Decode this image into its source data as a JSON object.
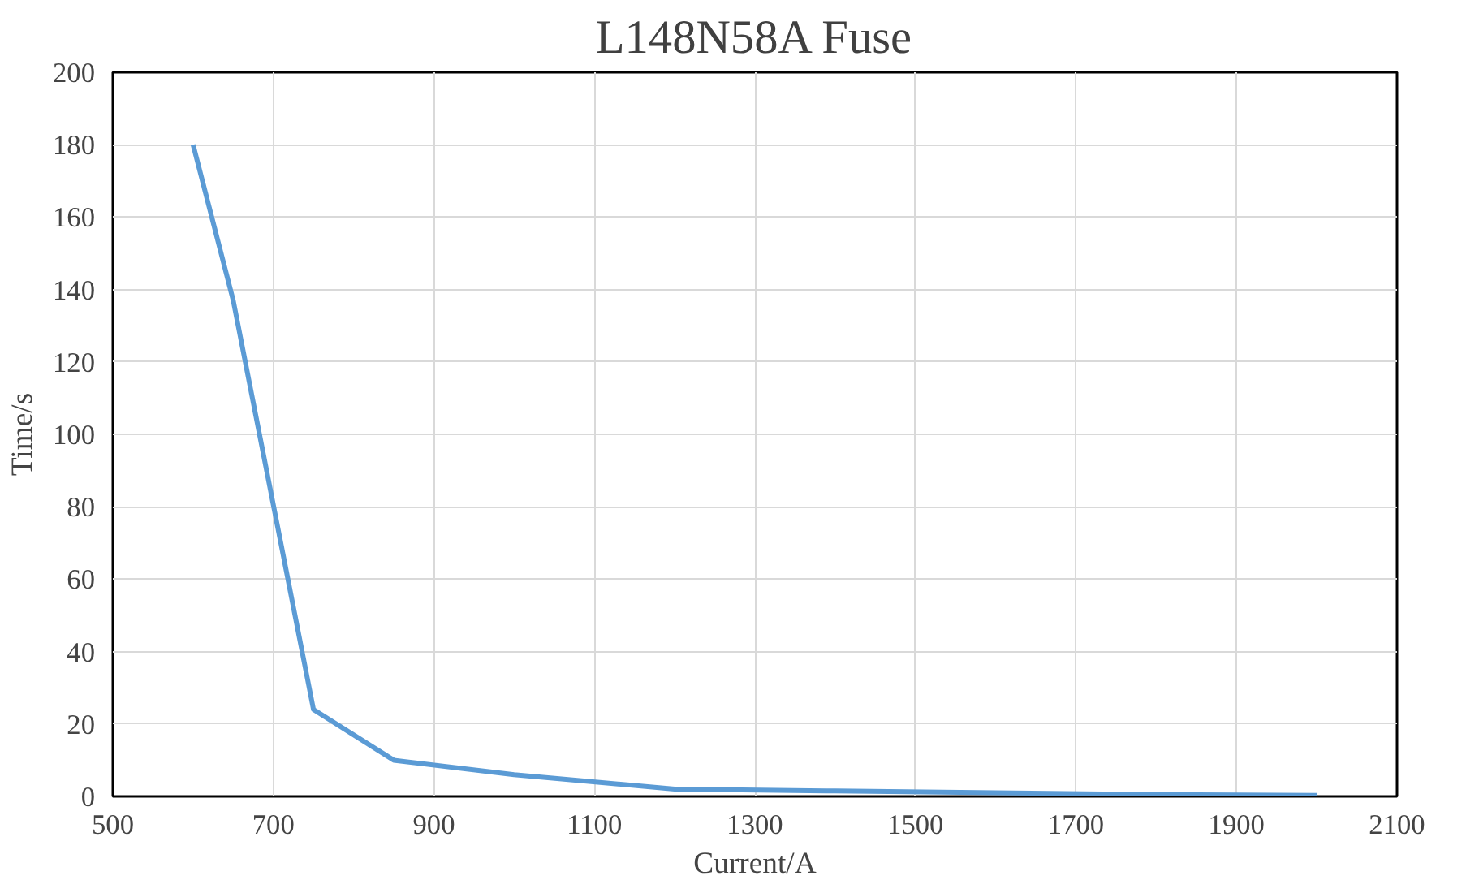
{
  "chart_data": {
    "type": "line",
    "title": "L148N58A Fuse",
    "xlabel": "Current/A",
    "ylabel": "Time/s",
    "x": [
      600,
      650,
      750,
      850,
      1000,
      1200,
      1400,
      1600,
      1800,
      2000
    ],
    "series": [
      {
        "color": "#5b9bd5",
        "values": [
          180,
          137,
          24,
          10,
          6,
          2,
          1.5,
          1,
          0.5,
          0.3
        ]
      }
    ],
    "xlim": [
      500,
      2100
    ],
    "xticks": [
      500,
      700,
      900,
      1100,
      1300,
      1500,
      1700,
      1900,
      2100
    ],
    "ylim": [
      0,
      200
    ],
    "yticks": [
      0,
      20,
      40,
      60,
      80,
      100,
      120,
      140,
      160,
      180,
      200
    ],
    "grid": true,
    "marker": "none",
    "line_style": "solid"
  }
}
